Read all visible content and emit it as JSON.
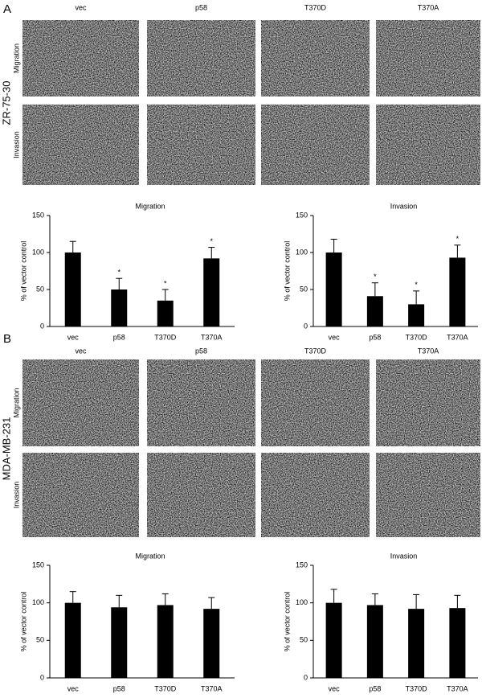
{
  "panels": [
    {
      "label": "A",
      "cell_line": "ZR-75-30",
      "columns": [
        "vec",
        "p58",
        "T370D",
        "T370A"
      ],
      "rows": [
        "Migration",
        "Invasion"
      ]
    },
    {
      "label": "B",
      "cell_line": "MDA-MB-231",
      "columns": [
        "vec",
        "p58",
        "T370D",
        "T370A"
      ],
      "rows": [
        "Migration",
        "Invasion"
      ]
    }
  ],
  "chart_data": [
    {
      "type": "bar",
      "title": "Migration",
      "y_label": "% of vector control",
      "categories": [
        "vec",
        "p58",
        "T370D",
        "T370A"
      ],
      "values": [
        100,
        50,
        35,
        92
      ],
      "errors": [
        15,
        15,
        15,
        15
      ],
      "markers": [
        null,
        "*",
        "*",
        "*"
      ],
      "color": "#000000",
      "ylim": [
        0,
        150
      ],
      "yticks": [
        0,
        50,
        100,
        150
      ]
    },
    {
      "type": "bar",
      "title": "Invasion",
      "y_label": "% of vector control",
      "categories": [
        "vec",
        "p58",
        "T370D",
        "T370A"
      ],
      "values": [
        100,
        41,
        30,
        93
      ],
      "errors": [
        18,
        18,
        18,
        17
      ],
      "markers": [
        null,
        "*",
        "*",
        "*"
      ],
      "color": "#000000",
      "ylim": [
        0,
        150
      ],
      "yticks": [
        0,
        50,
        100,
        150
      ]
    },
    {
      "type": "bar",
      "title": "Migration",
      "y_label": "% of vector control",
      "categories": [
        "vec",
        "p58",
        "T370D",
        "T370A"
      ],
      "values": [
        100,
        94,
        97,
        92
      ],
      "errors": [
        15,
        16,
        15,
        15
      ],
      "color": "#000000",
      "ylim": [
        0,
        150
      ],
      "yticks": [
        0,
        50,
        100,
        150
      ]
    },
    {
      "type": "bar",
      "title": "Invasion",
      "y_label": "% of vector control",
      "categories": [
        "vec",
        "p58",
        "T370D",
        "T370A"
      ],
      "values": [
        100,
        97,
        92,
        93
      ],
      "errors": [
        18,
        15,
        19,
        17
      ],
      "color": "#000000",
      "ylim": [
        0,
        150
      ],
      "yticks": [
        0,
        50,
        100,
        150
      ]
    }
  ]
}
